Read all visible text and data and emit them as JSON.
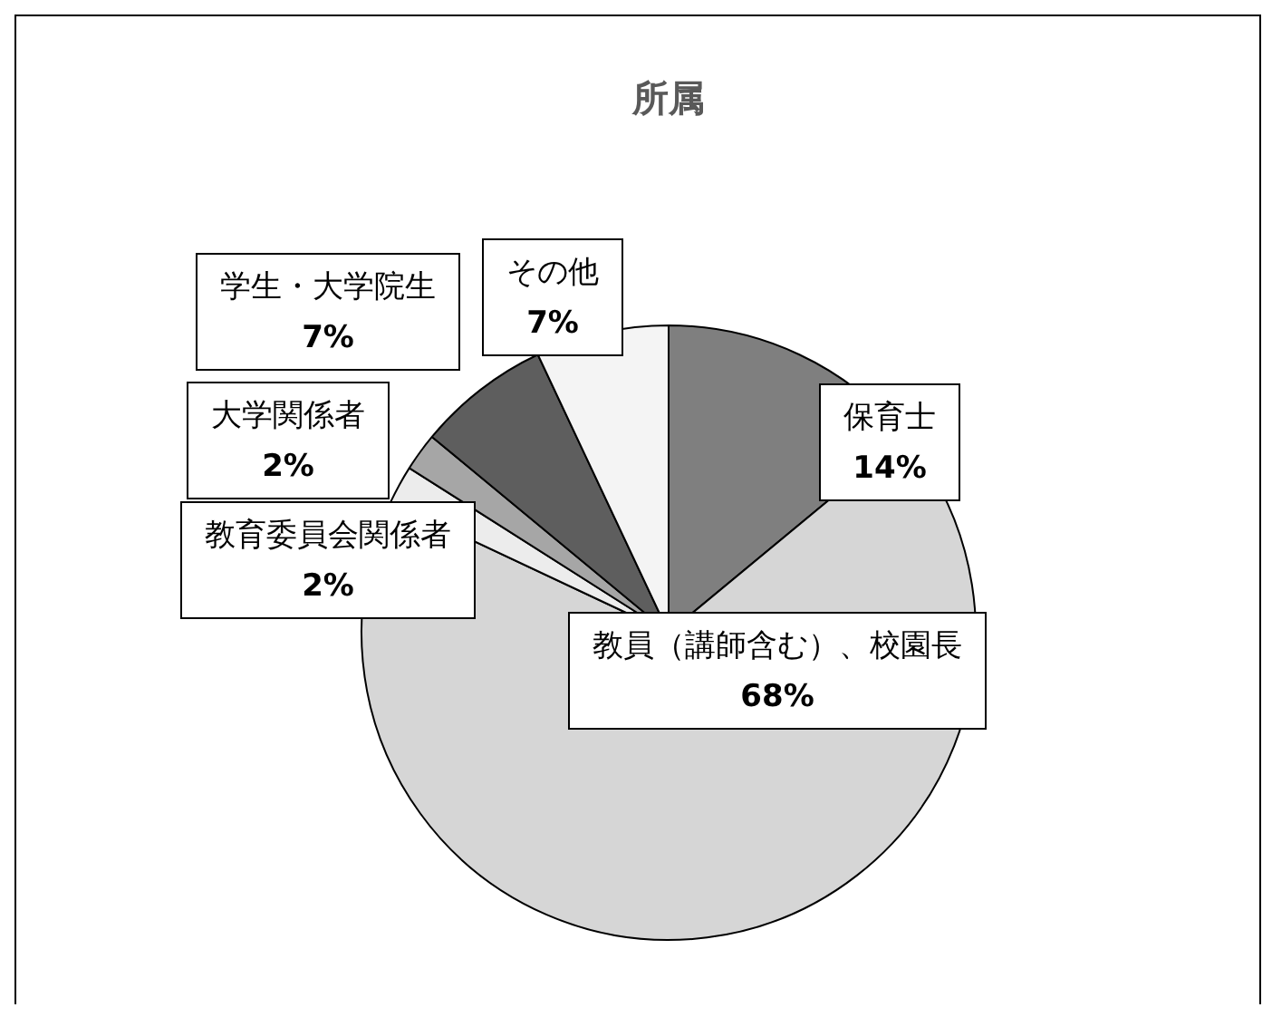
{
  "chart_data": {
    "type": "pie",
    "title": "所属",
    "categories": [
      "保育士",
      "教員（講師含む）、校園長",
      "教育委員会関係者",
      "大学関係者",
      "学生・大学院生",
      "その他"
    ],
    "values": [
      14,
      68,
      2,
      2,
      7,
      7
    ],
    "value_labels": [
      "14%",
      "68%",
      "2%",
      "2%",
      "7%",
      "7%"
    ],
    "colors": [
      "#7f7f7f",
      "#d6d6d6",
      "#ececec",
      "#a6a6a6",
      "#5e5e5e",
      "#f4f4f4"
    ],
    "legend": false
  }
}
